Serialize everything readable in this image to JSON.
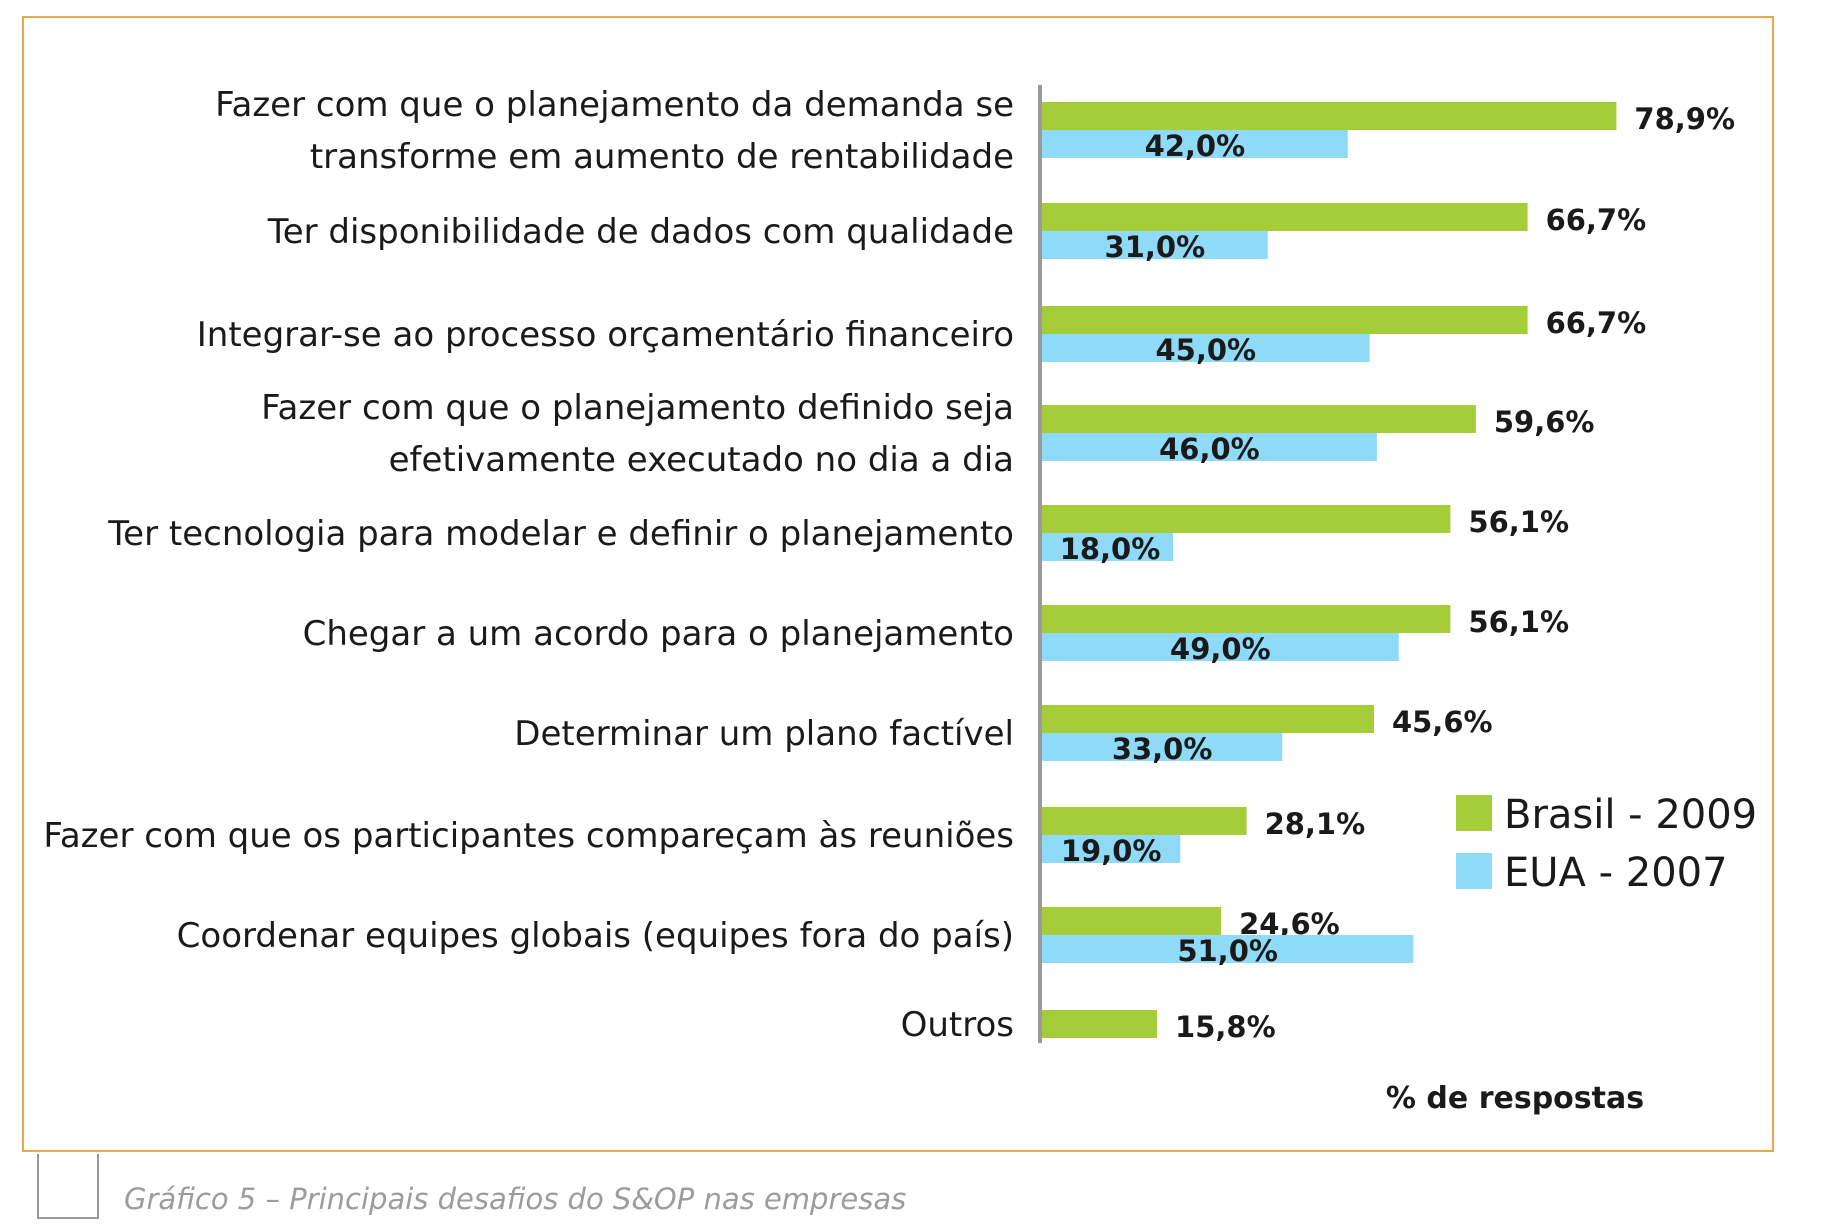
{
  "chart_data": {
    "type": "bar",
    "orientation": "horizontal",
    "categories": [
      [
        "Fazer com que o planejamento da demanda se",
        "transforme em aumento de rentabilidade"
      ],
      [
        "Ter disponibilidade de dados com qualidade"
      ],
      [
        "Integrar-se ao processo orçamentário financeiro"
      ],
      [
        "Fazer com que o planejamento definido seja",
        "efetivamente executado no dia a dia"
      ],
      [
        "Ter tecnologia para modelar e definir o planejamento"
      ],
      [
        "Chegar a um acordo para o planejamento"
      ],
      [
        "Determinar um plano factível"
      ],
      [
        "Fazer com que os participantes compareçam às reuniões"
      ],
      [
        "Coordenar equipes globais (equipes fora do país)"
      ],
      [
        "Outros"
      ]
    ],
    "series": [
      {
        "name": "Brasil - 2009",
        "color": "#a5cd39",
        "values": [
          78.9,
          66.7,
          66.7,
          59.6,
          56.1,
          56.1,
          45.6,
          28.1,
          24.6,
          15.8
        ],
        "labels": [
          "78,9%",
          "66,7%",
          "66,7%",
          "59,6%",
          "56,1%",
          "56,1%",
          "45,6%",
          "28,1%",
          "24,6%",
          "15,8%"
        ]
      },
      {
        "name": "EUA - 2007",
        "color": "#8fdaf6",
        "values": [
          42.0,
          31.0,
          45.0,
          46.0,
          18.0,
          49.0,
          33.0,
          19.0,
          51.0,
          null
        ],
        "labels": [
          "42,0%",
          "31,0%",
          "45,0%",
          "46,0%",
          "18,0%",
          "49,0%",
          "33,0%",
          "19,0%",
          "51,0%",
          null
        ]
      }
    ],
    "xlabel": "% de respostas",
    "xlim": [
      0,
      100
    ],
    "grid": false,
    "legend": "right"
  },
  "caption": "Gráfico 5 – Principais desafios do S&OP nas empresas"
}
